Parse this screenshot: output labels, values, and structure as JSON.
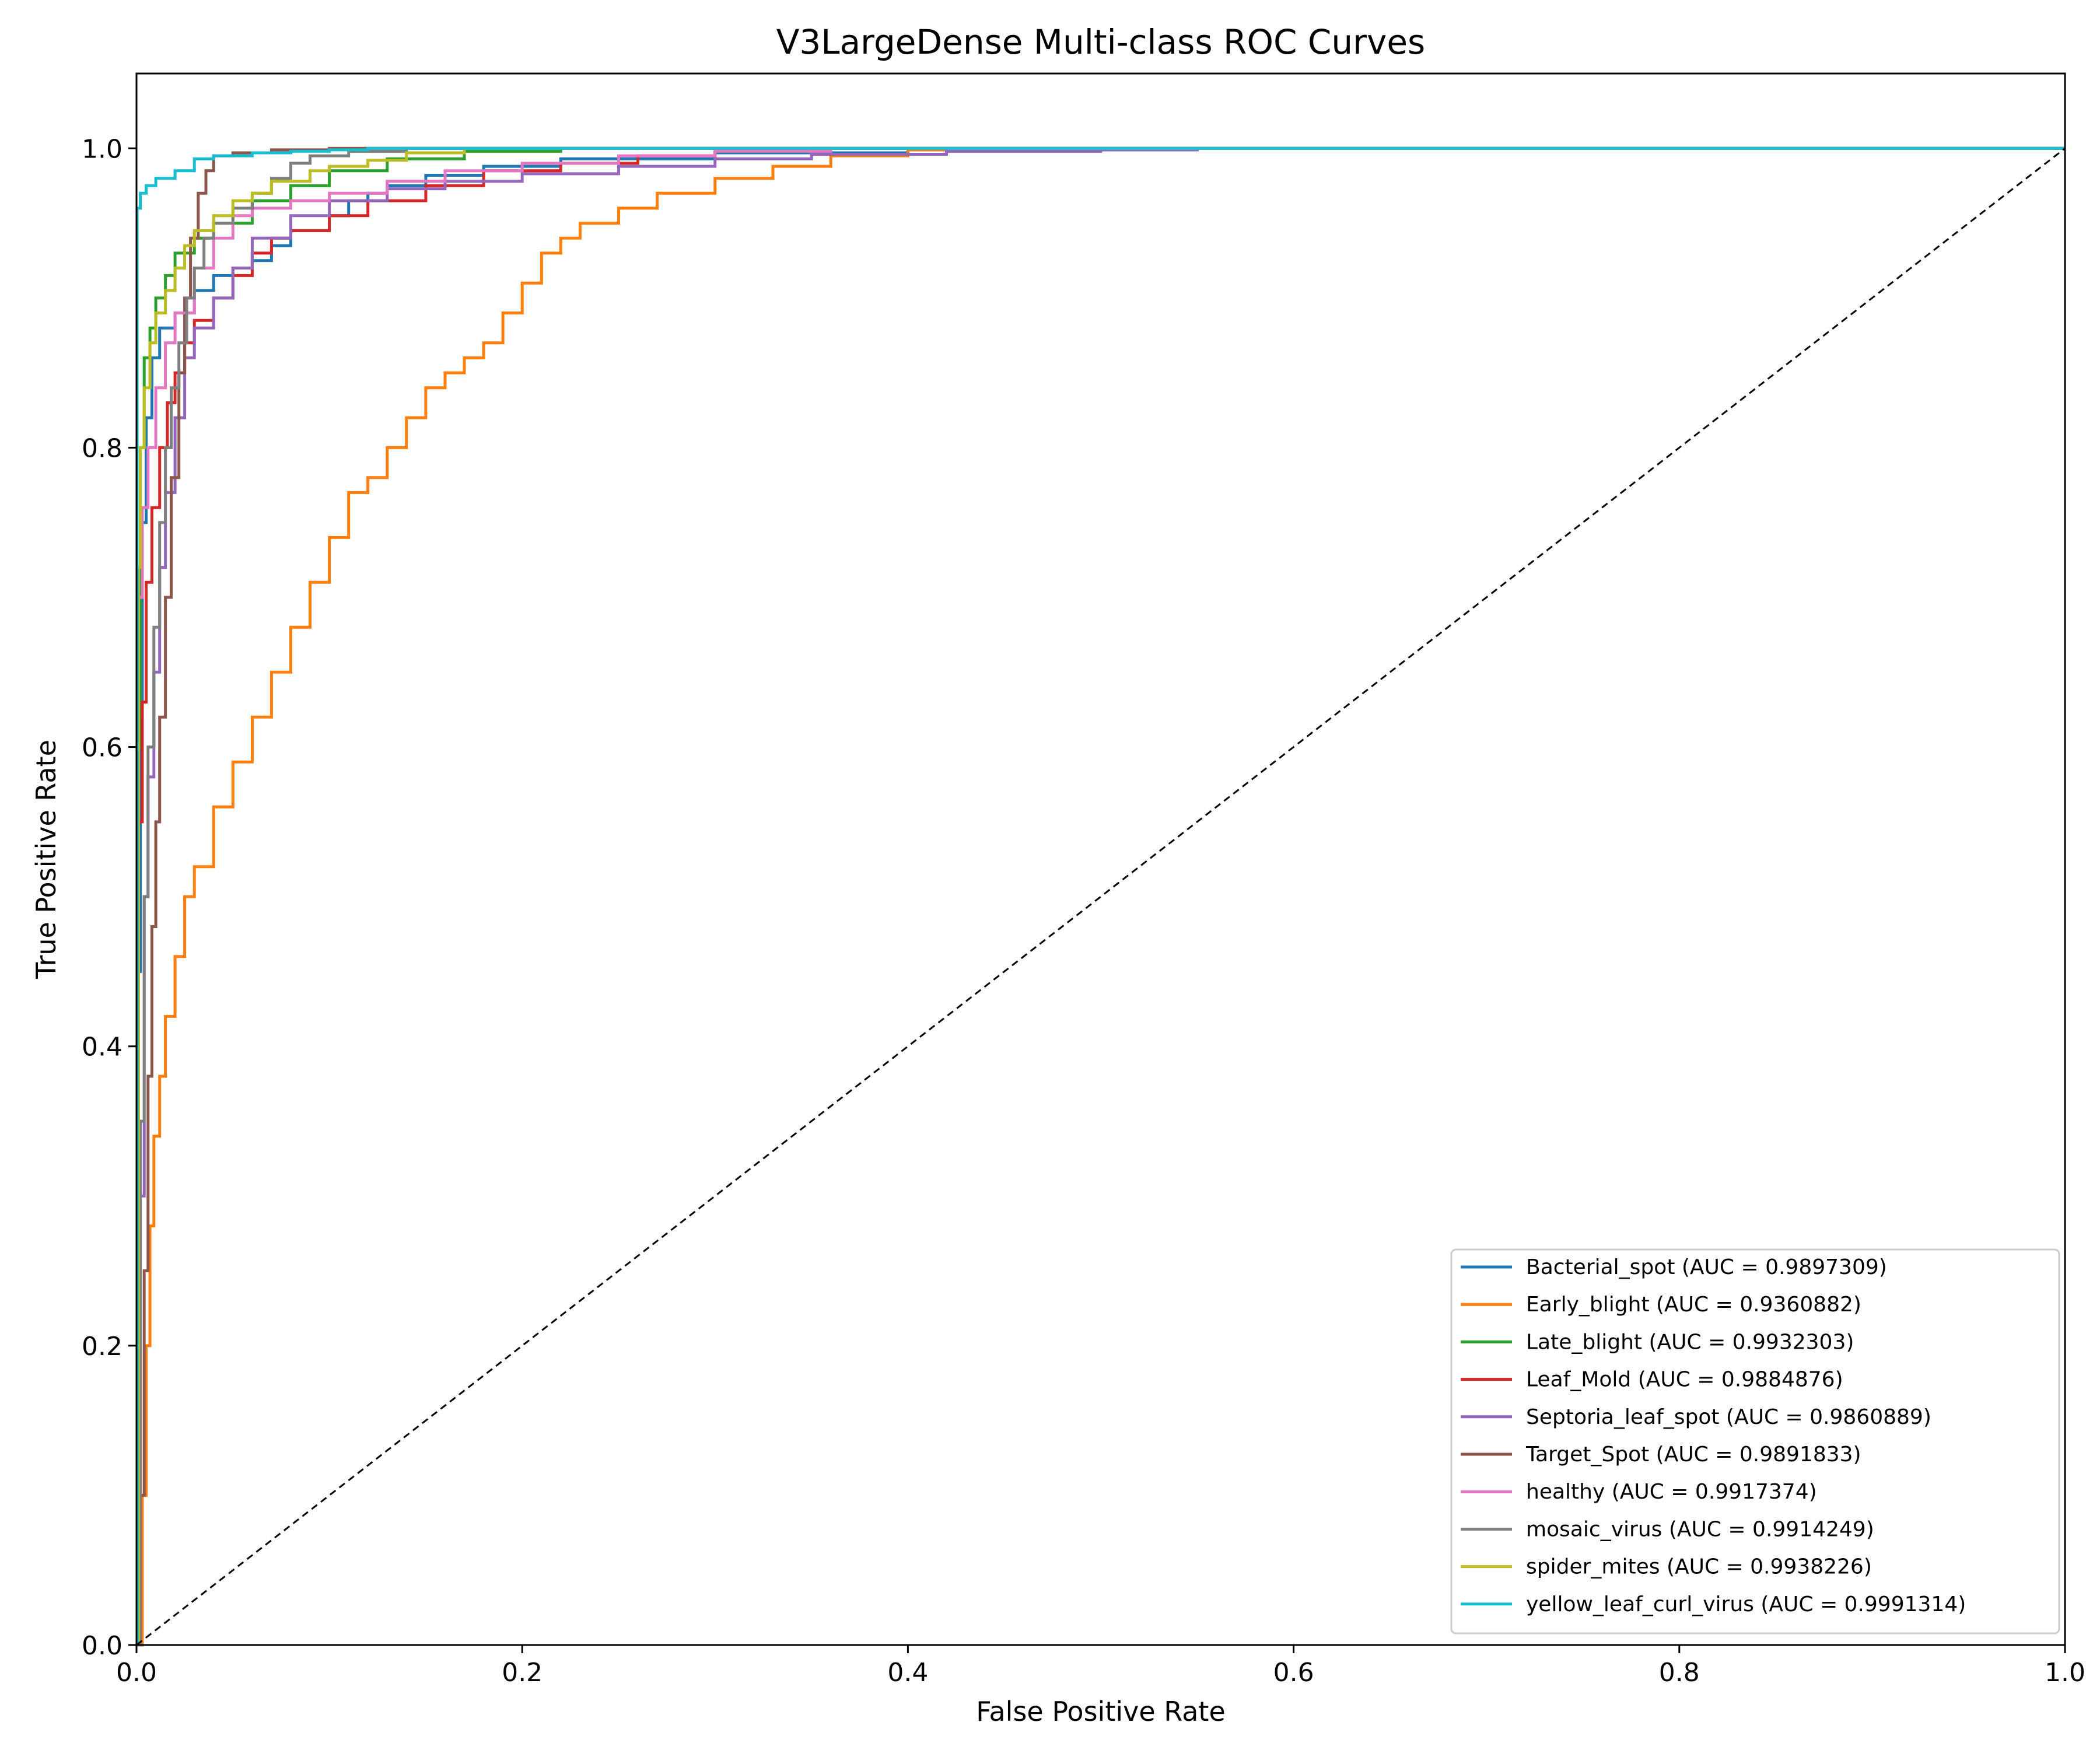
{
  "chart_data": {
    "type": "line",
    "title": "V3LargeDense Multi-class ROC Curves",
    "xlabel": "False Positive Rate",
    "ylabel": "True Positive Rate",
    "xlim": [
      0.0,
      1.0
    ],
    "ylim": [
      0.0,
      1.05
    ],
    "grid": false,
    "legend_position": "lower-right",
    "xticks": [
      "0.0",
      "0.2",
      "0.4",
      "0.6",
      "0.8",
      "1.0"
    ],
    "yticks": [
      "0.0",
      "0.2",
      "0.4",
      "0.6",
      "0.8",
      "1.0"
    ],
    "series": [
      {
        "name": "Bacterial_spot (AUC = 0.9897309)",
        "color": "#1f77b4",
        "points": [
          [
            0,
            0
          ],
          [
            0.001,
            0.45
          ],
          [
            0.002,
            0.62
          ],
          [
            0.003,
            0.75
          ],
          [
            0.005,
            0.82
          ],
          [
            0.008,
            0.86
          ],
          [
            0.012,
            0.88
          ],
          [
            0.02,
            0.89
          ],
          [
            0.03,
            0.905
          ],
          [
            0.04,
            0.915
          ],
          [
            0.05,
            0.92
          ],
          [
            0.06,
            0.925
          ],
          [
            0.07,
            0.935
          ],
          [
            0.08,
            0.945
          ],
          [
            0.09,
            0.945
          ],
          [
            0.1,
            0.955
          ],
          [
            0.11,
            0.965
          ],
          [
            0.12,
            0.97
          ],
          [
            0.13,
            0.975
          ],
          [
            0.15,
            0.982
          ],
          [
            0.18,
            0.988
          ],
          [
            0.22,
            0.993
          ],
          [
            0.3,
            0.997
          ],
          [
            0.4,
            0.999
          ],
          [
            0.55,
            1.0
          ],
          [
            1.0,
            1.0
          ]
        ]
      },
      {
        "name": "Early_blight (AUC = 0.9360882)",
        "color": "#ff7f0e",
        "points": [
          [
            0,
            0
          ],
          [
            0.003,
            0.1
          ],
          [
            0.005,
            0.2
          ],
          [
            0.007,
            0.28
          ],
          [
            0.009,
            0.34
          ],
          [
            0.012,
            0.38
          ],
          [
            0.015,
            0.42
          ],
          [
            0.02,
            0.46
          ],
          [
            0.025,
            0.5
          ],
          [
            0.03,
            0.52
          ],
          [
            0.04,
            0.56
          ],
          [
            0.05,
            0.59
          ],
          [
            0.06,
            0.62
          ],
          [
            0.07,
            0.65
          ],
          [
            0.08,
            0.68
          ],
          [
            0.09,
            0.71
          ],
          [
            0.1,
            0.74
          ],
          [
            0.11,
            0.77
          ],
          [
            0.12,
            0.78
          ],
          [
            0.13,
            0.8
          ],
          [
            0.14,
            0.82
          ],
          [
            0.15,
            0.84
          ],
          [
            0.16,
            0.85
          ],
          [
            0.17,
            0.86
          ],
          [
            0.18,
            0.87
          ],
          [
            0.19,
            0.89
          ],
          [
            0.2,
            0.91
          ],
          [
            0.21,
            0.93
          ],
          [
            0.22,
            0.94
          ],
          [
            0.23,
            0.95
          ],
          [
            0.25,
            0.96
          ],
          [
            0.27,
            0.97
          ],
          [
            0.3,
            0.98
          ],
          [
            0.33,
            0.988
          ],
          [
            0.36,
            0.995
          ],
          [
            0.4,
            0.999
          ],
          [
            0.45,
            1.0
          ],
          [
            1.0,
            1.0
          ]
        ]
      },
      {
        "name": "Late_blight (AUC = 0.9932303)",
        "color": "#2ca02c",
        "points": [
          [
            0,
            0
          ],
          [
            0.001,
            0.6
          ],
          [
            0.002,
            0.8
          ],
          [
            0.004,
            0.86
          ],
          [
            0.007,
            0.88
          ],
          [
            0.01,
            0.9
          ],
          [
            0.015,
            0.915
          ],
          [
            0.02,
            0.93
          ],
          [
            0.03,
            0.94
          ],
          [
            0.04,
            0.95
          ],
          [
            0.06,
            0.965
          ],
          [
            0.08,
            0.975
          ],
          [
            0.1,
            0.985
          ],
          [
            0.13,
            0.993
          ],
          [
            0.17,
            0.998
          ],
          [
            0.22,
            1.0
          ],
          [
            1.0,
            1.0
          ]
        ]
      },
      {
        "name": "Leaf_Mold (AUC = 0.9884876)",
        "color": "#d62728",
        "points": [
          [
            0,
            0
          ],
          [
            0.001,
            0.55
          ],
          [
            0.003,
            0.63
          ],
          [
            0.005,
            0.71
          ],
          [
            0.008,
            0.76
          ],
          [
            0.012,
            0.8
          ],
          [
            0.016,
            0.83
          ],
          [
            0.02,
            0.85
          ],
          [
            0.025,
            0.87
          ],
          [
            0.03,
            0.885
          ],
          [
            0.04,
            0.9
          ],
          [
            0.05,
            0.915
          ],
          [
            0.06,
            0.93
          ],
          [
            0.07,
            0.94
          ],
          [
            0.08,
            0.945
          ],
          [
            0.1,
            0.955
          ],
          [
            0.12,
            0.965
          ],
          [
            0.15,
            0.975
          ],
          [
            0.18,
            0.985
          ],
          [
            0.22,
            0.99
          ],
          [
            0.26,
            0.995
          ],
          [
            0.3,
            0.998
          ],
          [
            0.35,
            1.0
          ],
          [
            1.0,
            1.0
          ]
        ]
      },
      {
        "name": "Septoria_leaf_spot (AUC = 0.9860889)",
        "color": "#9467bd",
        "points": [
          [
            0,
            0
          ],
          [
            0.002,
            0.3
          ],
          [
            0.004,
            0.5
          ],
          [
            0.006,
            0.58
          ],
          [
            0.009,
            0.65
          ],
          [
            0.012,
            0.72
          ],
          [
            0.015,
            0.77
          ],
          [
            0.02,
            0.82
          ],
          [
            0.025,
            0.86
          ],
          [
            0.03,
            0.88
          ],
          [
            0.04,
            0.9
          ],
          [
            0.05,
            0.92
          ],
          [
            0.06,
            0.94
          ],
          [
            0.08,
            0.955
          ],
          [
            0.1,
            0.965
          ],
          [
            0.13,
            0.973
          ],
          [
            0.16,
            0.978
          ],
          [
            0.2,
            0.983
          ],
          [
            0.25,
            0.988
          ],
          [
            0.3,
            0.993
          ],
          [
            0.35,
            0.996
          ],
          [
            0.42,
            0.998
          ],
          [
            0.5,
            0.999
          ],
          [
            0.55,
            1.0
          ],
          [
            1.0,
            1.0
          ]
        ]
      },
      {
        "name": "Target_Spot (AUC = 0.9891833)",
        "color": "#8c564b",
        "points": [
          [
            0,
            0
          ],
          [
            0.002,
            0.1
          ],
          [
            0.004,
            0.25
          ],
          [
            0.006,
            0.38
          ],
          [
            0.008,
            0.48
          ],
          [
            0.01,
            0.55
          ],
          [
            0.012,
            0.62
          ],
          [
            0.015,
            0.7
          ],
          [
            0.018,
            0.78
          ],
          [
            0.022,
            0.85
          ],
          [
            0.025,
            0.9
          ],
          [
            0.028,
            0.94
          ],
          [
            0.032,
            0.97
          ],
          [
            0.036,
            0.985
          ],
          [
            0.04,
            0.995
          ],
          [
            0.05,
            0.997
          ],
          [
            0.07,
            0.999
          ],
          [
            0.1,
            1.0
          ],
          [
            1.0,
            1.0
          ]
        ]
      },
      {
        "name": "healthy (AUC = 0.9917374)",
        "color": "#e377c2",
        "points": [
          [
            0,
            0
          ],
          [
            0.001,
            0.7
          ],
          [
            0.003,
            0.76
          ],
          [
            0.006,
            0.8
          ],
          [
            0.01,
            0.84
          ],
          [
            0.015,
            0.87
          ],
          [
            0.02,
            0.89
          ],
          [
            0.03,
            0.92
          ],
          [
            0.04,
            0.94
          ],
          [
            0.05,
            0.955
          ],
          [
            0.06,
            0.96
          ],
          [
            0.08,
            0.965
          ],
          [
            0.1,
            0.97
          ],
          [
            0.13,
            0.978
          ],
          [
            0.16,
            0.985
          ],
          [
            0.2,
            0.99
          ],
          [
            0.25,
            0.995
          ],
          [
            0.3,
            0.998
          ],
          [
            0.36,
            1.0
          ],
          [
            1.0,
            1.0
          ]
        ]
      },
      {
        "name": "mosaic_virus (AUC = 0.9914249)",
        "color": "#7f7f7f",
        "points": [
          [
            0,
            0
          ],
          [
            0.002,
            0.35
          ],
          [
            0.004,
            0.5
          ],
          [
            0.006,
            0.6
          ],
          [
            0.009,
            0.68
          ],
          [
            0.012,
            0.75
          ],
          [
            0.015,
            0.8
          ],
          [
            0.018,
            0.84
          ],
          [
            0.022,
            0.87
          ],
          [
            0.026,
            0.9
          ],
          [
            0.03,
            0.92
          ],
          [
            0.035,
            0.94
          ],
          [
            0.04,
            0.95
          ],
          [
            0.05,
            0.96
          ],
          [
            0.06,
            0.97
          ],
          [
            0.07,
            0.98
          ],
          [
            0.08,
            0.99
          ],
          [
            0.09,
            0.995
          ],
          [
            0.11,
            0.998
          ],
          [
            0.14,
            1.0
          ],
          [
            1.0,
            1.0
          ]
        ]
      },
      {
        "name": "spider_mites (AUC = 0.9938226)",
        "color": "#bcbd22",
        "points": [
          [
            0,
            0
          ],
          [
            0.001,
            0.72
          ],
          [
            0.002,
            0.8
          ],
          [
            0.004,
            0.84
          ],
          [
            0.007,
            0.87
          ],
          [
            0.01,
            0.89
          ],
          [
            0.015,
            0.905
          ],
          [
            0.02,
            0.92
          ],
          [
            0.025,
            0.935
          ],
          [
            0.03,
            0.945
          ],
          [
            0.04,
            0.955
          ],
          [
            0.05,
            0.965
          ],
          [
            0.06,
            0.97
          ],
          [
            0.07,
            0.978
          ],
          [
            0.09,
            0.985
          ],
          [
            0.1,
            0.988
          ],
          [
            0.12,
            0.992
          ],
          [
            0.14,
            0.997
          ],
          [
            0.17,
            1.0
          ],
          [
            1.0,
            1.0
          ]
        ]
      },
      {
        "name": "yellow_leaf_curl_virus (AUC = 0.9991314)",
        "color": "#17becf",
        "points": [
          [
            0,
            0
          ],
          [
            0.0003,
            0.96
          ],
          [
            0.002,
            0.97
          ],
          [
            0.005,
            0.975
          ],
          [
            0.01,
            0.98
          ],
          [
            0.02,
            0.985
          ],
          [
            0.03,
            0.993
          ],
          [
            0.04,
            0.995
          ],
          [
            0.06,
            0.997
          ],
          [
            0.08,
            0.998
          ],
          [
            0.1,
            0.999
          ],
          [
            0.12,
            1.0
          ],
          [
            1.0,
            1.0
          ]
        ]
      }
    ]
  }
}
